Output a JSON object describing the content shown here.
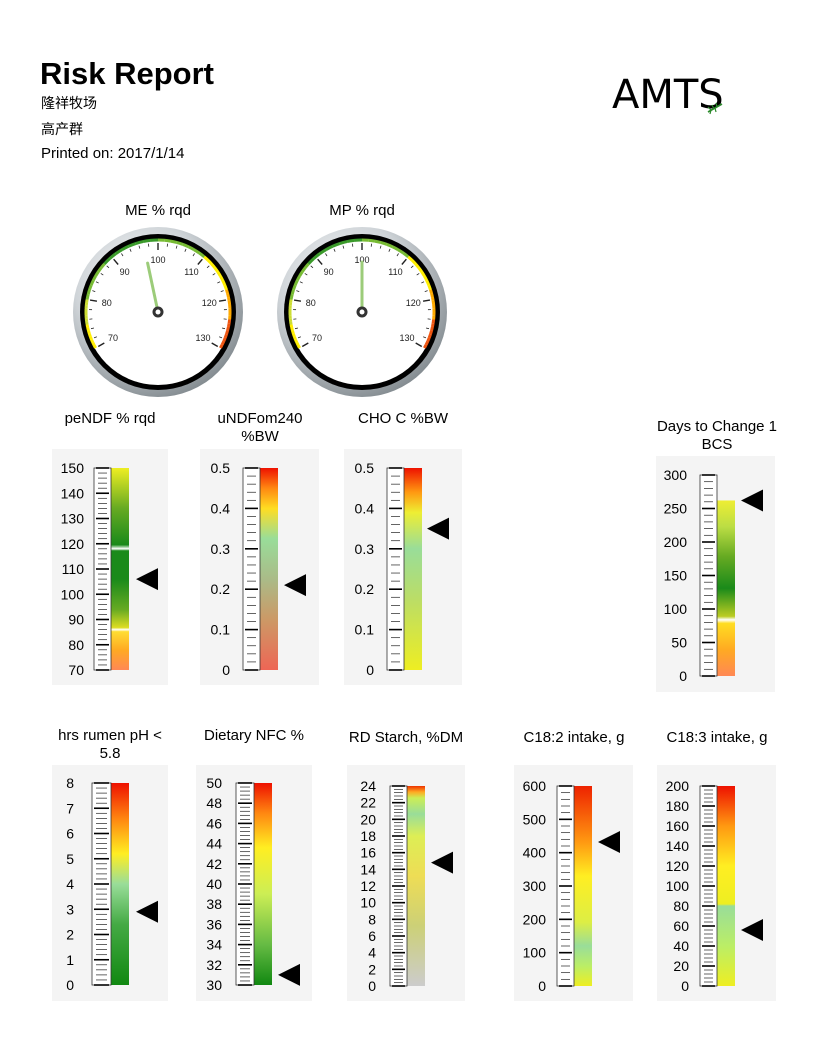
{
  "header": {
    "title": "Risk Report",
    "farm": "隆祥牧场",
    "group": "高产群",
    "printed_label": "Printed on: 2017/1/14",
    "logo_text": "AMTS",
    "logo_icon": "leaf-icon"
  },
  "gauges": [
    {
      "title": "ME % rqd",
      "ticks": [
        "70",
        "80",
        "90",
        "100",
        "110",
        "120",
        "130"
      ],
      "value": 97
    },
    {
      "title": "MP % rqd",
      "ticks": [
        "70",
        "80",
        "90",
        "100",
        "110",
        "120",
        "130"
      ],
      "value": 100
    }
  ],
  "bars": [
    {
      "title": "peNDF % rqd",
      "ticks": [
        "70",
        "80",
        "90",
        "100",
        "110",
        "120",
        "130",
        "140",
        "150"
      ],
      "min": 70,
      "max": 150,
      "marker": 106
    },
    {
      "title": "uNDFom240 %BW",
      "ticks": [
        "0",
        "0.1",
        "0.2",
        "0.3",
        "0.4",
        "0.5"
      ],
      "min": 0,
      "max": 0.5,
      "marker": 0.21
    },
    {
      "title": "CHO C %BW",
      "ticks": [
        "0",
        "0.1",
        "0.2",
        "0.3",
        "0.4",
        "0.5"
      ],
      "min": 0,
      "max": 0.5,
      "marker": 0.35
    },
    {
      "title": "Days to Change 1 BCS",
      "ticks": [
        "0",
        "50",
        "100",
        "150",
        "200",
        "250",
        "300"
      ],
      "min": 0,
      "max": 300,
      "marker": 262
    },
    {
      "title": "hrs rumen pH < 5.8",
      "ticks": [
        "0",
        "1",
        "2",
        "3",
        "4",
        "5",
        "6",
        "7",
        "8"
      ],
      "min": 0,
      "max": 8,
      "marker": 2.9
    },
    {
      "title": "Dietary NFC %",
      "ticks": [
        "30",
        "32",
        "34",
        "36",
        "38",
        "40",
        "42",
        "44",
        "46",
        "48",
        "50"
      ],
      "min": 30,
      "max": 50,
      "marker": 31
    },
    {
      "title": "RD Starch, %DM",
      "ticks": [
        "0",
        "2",
        "4",
        "6",
        "8",
        "10",
        "12",
        "14",
        "16",
        "18",
        "20",
        "22",
        "24"
      ],
      "min": 0,
      "max": 24,
      "marker": 14.8
    },
    {
      "title": "C18:2 intake, g",
      "ticks": [
        "0",
        "100",
        "200",
        "300",
        "400",
        "500",
        "600"
      ],
      "min": 0,
      "max": 600,
      "marker": 432
    },
    {
      "title": "C18:3 intake, g",
      "ticks": [
        "0",
        "20",
        "40",
        "60",
        "80",
        "100",
        "120",
        "140",
        "160",
        "180",
        "200"
      ],
      "min": 0,
      "max": 200,
      "marker": 56
    }
  ],
  "colors": {
    "red": "#ee1100",
    "orange": "#ff8800",
    "yellow": "#ffee00",
    "green": "#1a9a1a",
    "pale_green": "#99dd88",
    "grey": "#c8c8c0",
    "panel": "#f4f4f4"
  }
}
